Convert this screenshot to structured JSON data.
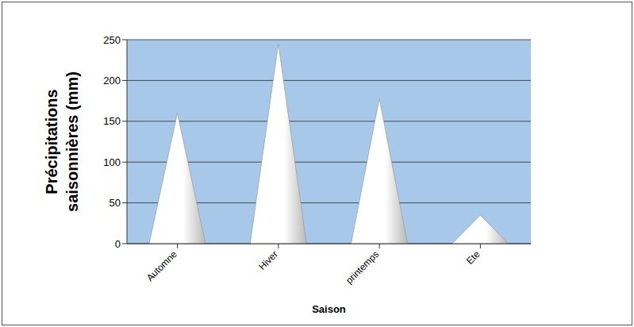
{
  "chart_data": {
    "type": "bar",
    "categories": [
      "Automne",
      "Hiver",
      "printemps",
      "Ete"
    ],
    "values": [
      160,
      245,
      178,
      35
    ],
    "color": "#ffffff",
    "x_label": "Saison",
    "y_label": "Précipitations saisonnières (mm)",
    "ylim": [
      0,
      250
    ],
    "yticks": [
      0,
      50,
      100,
      150,
      200,
      250
    ],
    "grid": true
  }
}
